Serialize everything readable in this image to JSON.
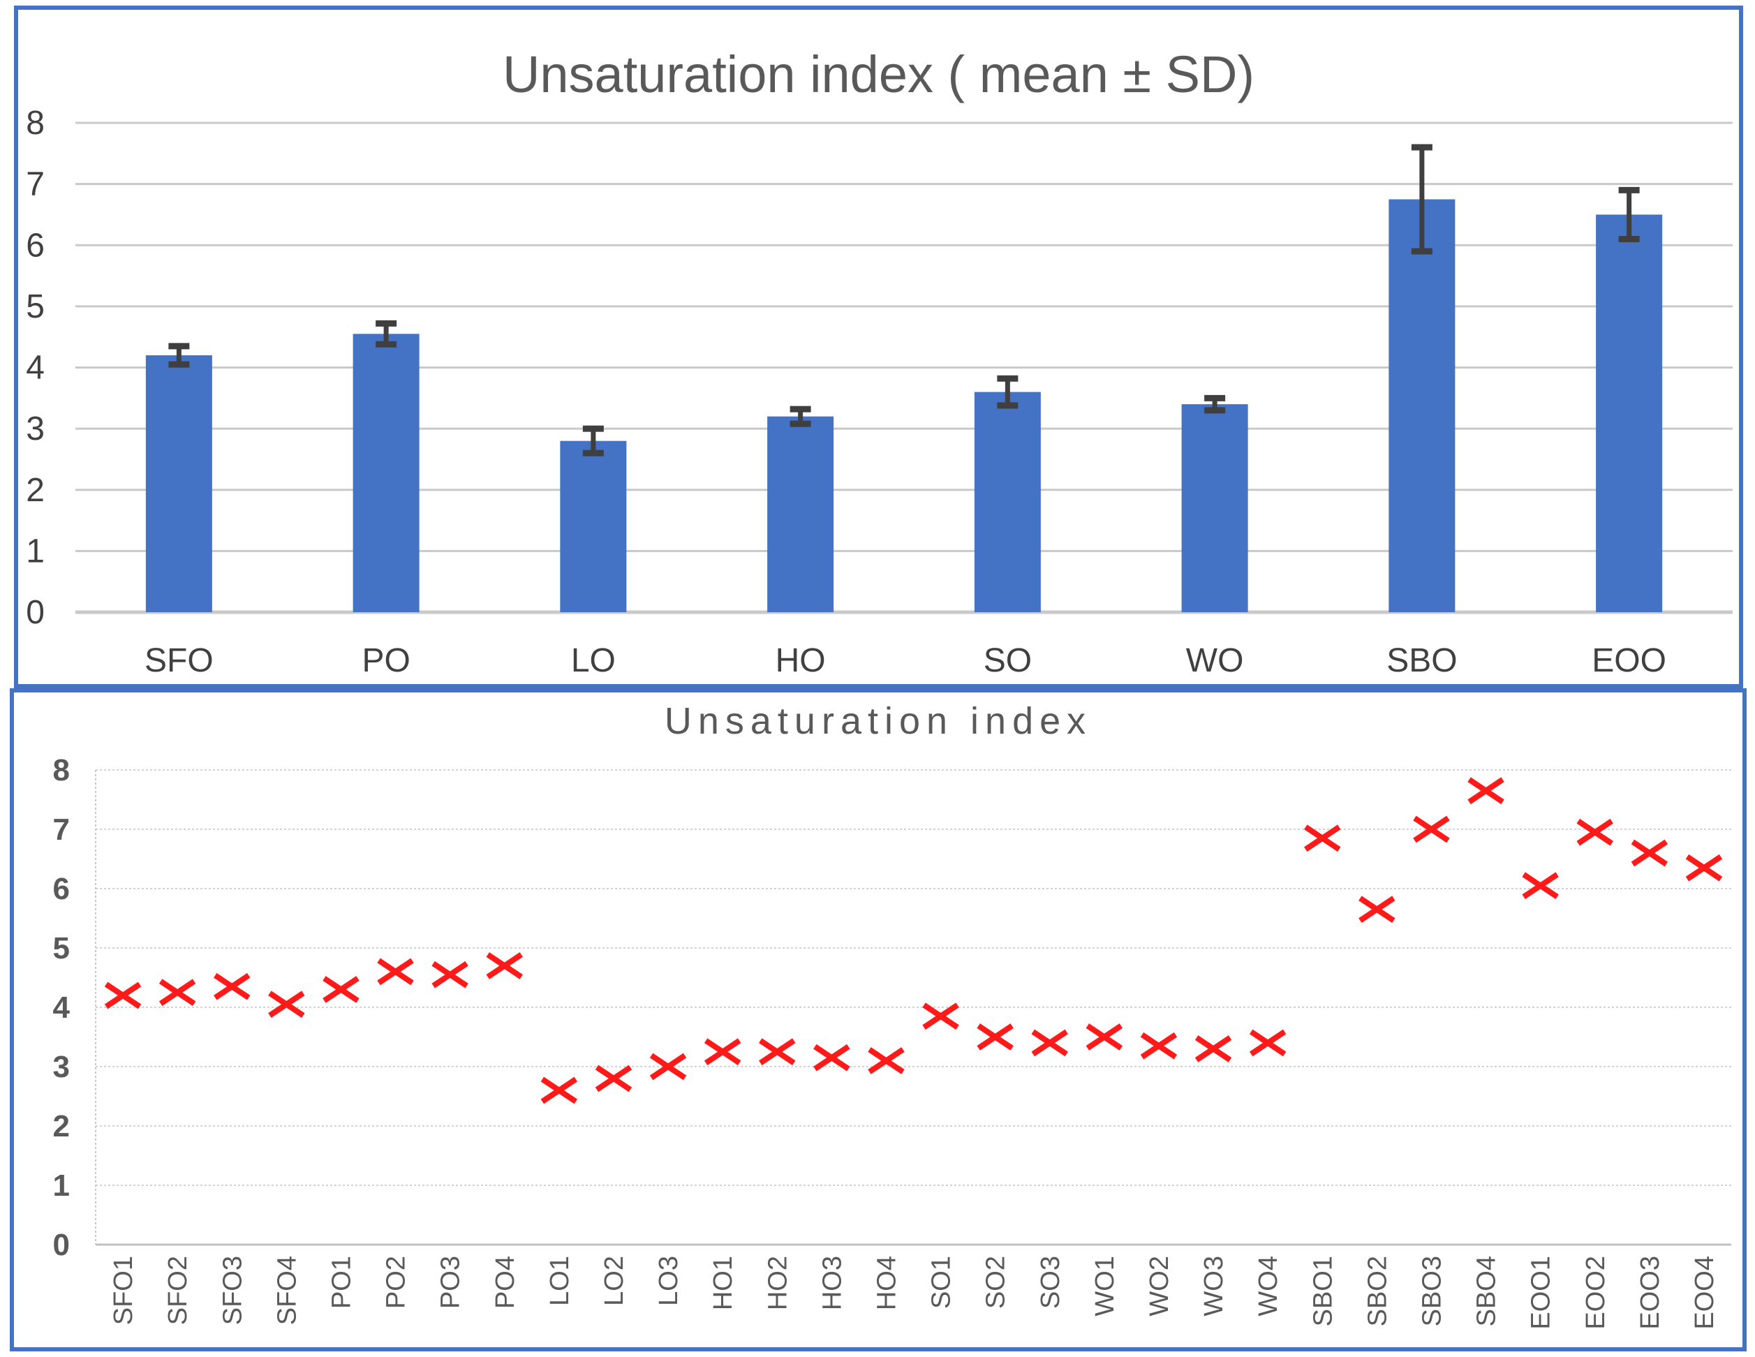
{
  "colors": {
    "panel_border": "#4472C4",
    "bar_fill": "#4472C4",
    "error_bar": "#3F3F3F",
    "marker_red": "#FF1A1A",
    "gridline": "#C9C9C9",
    "axis_line": "#BFBFBF",
    "title_text": "#595959",
    "tick_text_top": "#404040",
    "tick_text_bottom": "#595959"
  },
  "chart_data": [
    {
      "type": "bar",
      "title": "Unsaturation index ( mean ± SD)",
      "categories": [
        "SFO",
        "PO",
        "LO",
        "HO",
        "SO",
        "WO",
        "SBO",
        "EOO"
      ],
      "values": [
        4.2,
        4.55,
        2.8,
        3.2,
        3.6,
        3.4,
        6.75,
        6.5
      ],
      "errors": [
        0.15,
        0.17,
        0.2,
        0.12,
        0.22,
        0.1,
        0.85,
        0.4
      ],
      "xlabel": "",
      "ylabel": "",
      "ylim": [
        0,
        8
      ],
      "yticks": [
        0,
        1,
        2,
        3,
        4,
        5,
        6,
        7,
        8
      ],
      "grid": "horizontal",
      "legend": "none",
      "bar_color": "#4472C4",
      "error_color": "#3F3F3F"
    },
    {
      "type": "scatter",
      "title": "Unsaturation index",
      "categories": [
        "SFO1",
        "SFO2",
        "SFO3",
        "SFO4",
        "PO1",
        "PO2",
        "PO3",
        "PO4",
        "LO1",
        "LO2",
        "LO3",
        "HO1",
        "HO2",
        "HO3",
        "HO4",
        "SO1",
        "SO2",
        "SO3",
        "WO1",
        "WO2",
        "WO3",
        "WO4",
        "SBO1",
        "SBO2",
        "SBO3",
        "SBO4",
        "EOO1",
        "EOO2",
        "EOO3",
        "EOO4"
      ],
      "values": [
        4.2,
        4.25,
        4.35,
        4.05,
        4.3,
        4.6,
        4.55,
        4.7,
        2.6,
        2.8,
        3.0,
        3.25,
        3.25,
        3.15,
        3.1,
        3.85,
        3.5,
        3.4,
        3.5,
        3.35,
        3.3,
        3.4,
        6.85,
        5.65,
        7.0,
        7.65,
        6.05,
        6.95,
        6.6,
        6.35
      ],
      "xlabel": "",
      "ylabel": "",
      "ylim": [
        0,
        8
      ],
      "yticks": [
        0,
        1,
        2,
        3,
        4,
        5,
        6,
        7,
        8
      ],
      "grid": "horizontal",
      "legend": "none",
      "marker": "x-cross",
      "marker_color": "#FF1A1A"
    }
  ]
}
